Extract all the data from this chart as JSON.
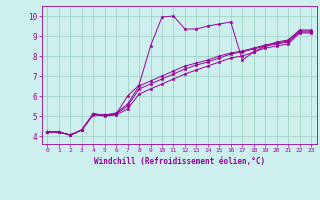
{
  "xlabel": "Windchill (Refroidissement éolien,°C)",
  "bg_color": "#cdf0ee",
  "line_color": "#990099",
  "grid_color": "#99ccbb",
  "xlim": [
    -0.5,
    23.5
  ],
  "ylim": [
    3.6,
    10.5
  ],
  "xticks": [
    0,
    1,
    2,
    3,
    4,
    5,
    6,
    7,
    8,
    9,
    10,
    11,
    12,
    13,
    14,
    15,
    16,
    17,
    18,
    19,
    20,
    21,
    22,
    23
  ],
  "yticks": [
    4,
    5,
    6,
    7,
    8,
    9,
    10
  ],
  "series": [
    [
      4.2,
      4.2,
      4.05,
      4.3,
      5.1,
      5.05,
      5.1,
      6.0,
      6.55,
      8.5,
      9.95,
      10.0,
      9.35,
      9.35,
      9.5,
      9.6,
      9.7,
      7.8,
      8.2,
      8.5,
      8.7,
      8.8,
      9.3,
      9.3
    ],
    [
      4.2,
      4.2,
      4.05,
      4.3,
      5.1,
      5.05,
      5.15,
      5.6,
      6.5,
      6.75,
      7.0,
      7.25,
      7.5,
      7.65,
      7.8,
      8.0,
      8.15,
      8.25,
      8.4,
      8.55,
      8.65,
      8.75,
      9.25,
      9.25
    ],
    [
      4.2,
      4.2,
      4.05,
      4.3,
      5.1,
      5.05,
      5.1,
      5.5,
      6.35,
      6.6,
      6.85,
      7.1,
      7.35,
      7.55,
      7.7,
      7.9,
      8.1,
      8.2,
      8.35,
      8.5,
      8.6,
      8.7,
      9.2,
      9.2
    ],
    [
      4.2,
      4.2,
      4.05,
      4.3,
      5.05,
      5.0,
      5.05,
      5.35,
      6.1,
      6.35,
      6.6,
      6.85,
      7.1,
      7.3,
      7.5,
      7.7,
      7.9,
      8.0,
      8.2,
      8.4,
      8.5,
      8.6,
      9.15,
      9.15
    ]
  ]
}
